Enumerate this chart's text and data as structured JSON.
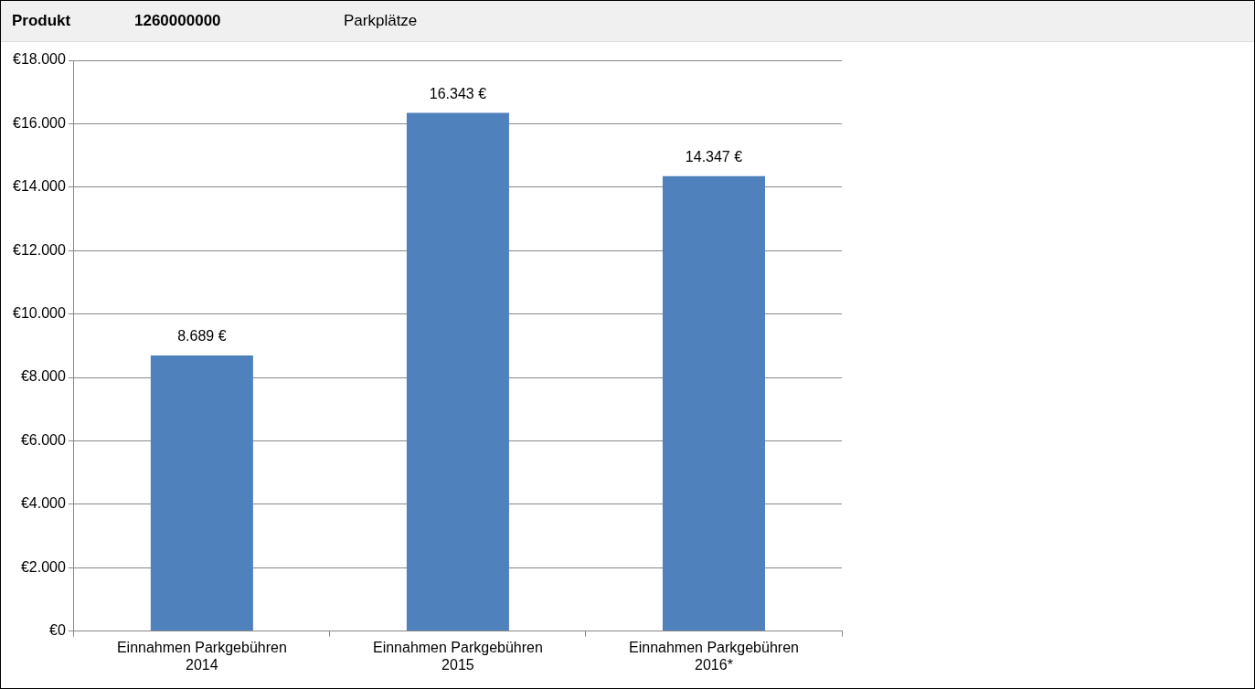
{
  "chart_data": {
    "type": "bar",
    "title": "Parkplätze",
    "annotations": [
      "Produkt",
      "1260000000"
    ],
    "categories": [
      "Einnahmen Parkgebühren 2014",
      "Einnahmen Parkgebühren 2015",
      "Einnahmen Parkgebühren 2016*"
    ],
    "values": [
      8689,
      16343,
      14347
    ],
    "color": "#4f81bd",
    "value_labels": [
      "8.689 €",
      "16.343 €",
      "14.347 €"
    ],
    "ylim": [
      0,
      18000
    ],
    "yticks": [
      {
        "value": 0,
        "label": "€0"
      },
      {
        "value": 2000,
        "label": "€2.000"
      },
      {
        "value": 4000,
        "label": "€4.000"
      },
      {
        "value": 6000,
        "label": "€6.000"
      },
      {
        "value": 8000,
        "label": "€8.000"
      },
      {
        "value": 10000,
        "label": "€10.000"
      },
      {
        "value": 12000,
        "label": "€12.000"
      },
      {
        "value": 14000,
        "label": "€14.000"
      },
      {
        "value": 16000,
        "label": "€16.000"
      },
      {
        "value": 18000,
        "label": "€18.000"
      }
    ],
    "grid": "y",
    "legend": false
  }
}
